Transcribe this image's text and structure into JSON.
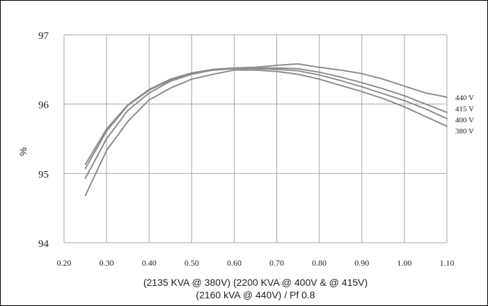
{
  "chart_data": {
    "type": "line",
    "title": "",
    "ylabel": "%",
    "xlabel_lines": [
      "(2135 KVA @ 380V) (2200 KVA @ 400V & @ 415V)",
      "(2160 kVA @ 440V) / Pf 0.8"
    ],
    "xlim": [
      0.2,
      1.1
    ],
    "ylim": [
      94,
      97
    ],
    "x_ticks": [
      "0.20",
      "0.30",
      "0.40",
      "0.50",
      "0.60",
      "0.70",
      "0.80",
      "0.90",
      "1.00",
      "1.10"
    ],
    "y_ticks": [
      "94",
      "95",
      "96",
      "97"
    ],
    "grid": true,
    "line_color": "#8c8c8c",
    "series": [
      {
        "name": "440 V",
        "x": [
          0.25,
          0.3,
          0.35,
          0.4,
          0.45,
          0.5,
          0.55,
          0.6,
          0.65,
          0.7,
          0.75,
          0.8,
          0.85,
          0.9,
          0.95,
          1.0,
          1.05,
          1.1
        ],
        "y": [
          95.13,
          95.64,
          95.99,
          96.21,
          96.36,
          96.45,
          96.5,
          96.52,
          96.53,
          96.56,
          96.58,
          96.53,
          96.49,
          96.44,
          96.36,
          96.26,
          96.16,
          96.1
        ]
      },
      {
        "name": "415 V",
        "x": [
          0.25,
          0.3,
          0.35,
          0.4,
          0.45,
          0.5,
          0.55,
          0.6,
          0.65,
          0.7,
          0.75,
          0.8,
          0.85,
          0.9,
          0.95,
          1.0,
          1.05,
          1.1
        ],
        "y": [
          95.07,
          95.61,
          95.98,
          96.2,
          96.35,
          96.44,
          96.49,
          96.51,
          96.52,
          96.52,
          96.51,
          96.46,
          96.39,
          96.31,
          96.22,
          96.12,
          96.0,
          95.88
        ]
      },
      {
        "name": "400 V",
        "x": [
          0.25,
          0.3,
          0.35,
          0.4,
          0.45,
          0.5,
          0.55,
          0.6,
          0.65,
          0.7,
          0.75,
          0.8,
          0.85,
          0.9,
          0.95,
          1.0,
          1.05,
          1.1
        ],
        "y": [
          94.93,
          95.5,
          95.91,
          96.16,
          96.33,
          96.43,
          96.49,
          96.51,
          96.51,
          96.5,
          96.48,
          96.42,
          96.34,
          96.25,
          96.15,
          96.05,
          95.93,
          95.79
        ]
      },
      {
        "name": "380 V",
        "x": [
          0.25,
          0.3,
          0.35,
          0.4,
          0.45,
          0.5,
          0.55,
          0.6,
          0.65,
          0.7,
          0.75,
          0.8,
          0.85,
          0.9,
          0.95,
          1.0,
          1.05,
          1.1
        ],
        "y": [
          94.68,
          95.33,
          95.75,
          96.06,
          96.23,
          96.36,
          96.43,
          96.49,
          96.49,
          96.47,
          96.43,
          96.36,
          96.27,
          96.18,
          96.08,
          95.96,
          95.82,
          95.68
        ]
      }
    ]
  }
}
